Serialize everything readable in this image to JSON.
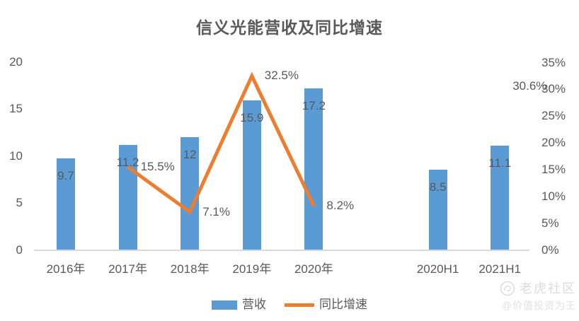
{
  "chart_data": {
    "type": "bar",
    "title": "信义光能营收及同比增速",
    "categories": [
      "2016年",
      "2017年",
      "2018年",
      "2019年",
      "2020年",
      "2020H1",
      "2021H1"
    ],
    "category_slots": [
      0,
      1,
      2,
      3,
      4,
      6,
      7
    ],
    "slot_count": 8,
    "gap_after": "2020年",
    "grid": false,
    "series": [
      {
        "name": "营收",
        "kind": "bar",
        "axis": "left",
        "color": "#5B9BD5",
        "values": [
          9.7,
          11.2,
          12,
          15.9,
          17.2,
          8.5,
          11.1
        ],
        "labels": [
          "9.7",
          "11.2",
          "12",
          "15.9",
          "17.2",
          "8.5",
          "11.1"
        ]
      },
      {
        "name": "同比增速",
        "kind": "line",
        "axis": "right",
        "color": "#ED7D31",
        "values": [
          null,
          15.5,
          7.1,
          32.5,
          8.2,
          null,
          30.6
        ],
        "labels": [
          null,
          "15.5%",
          "7.1%",
          "32.5%",
          "8.2%",
          null,
          "30.6%"
        ]
      }
    ],
    "left_axis": {
      "range": [
        0,
        20
      ],
      "ticks": [
        20,
        15,
        10,
        5,
        0
      ],
      "tick_labels": [
        "20",
        "15",
        "10",
        "5",
        "0"
      ]
    },
    "right_axis": {
      "range": [
        0,
        35
      ],
      "ticks": [
        35,
        30,
        25,
        20,
        15,
        10,
        5,
        0
      ],
      "tick_labels": [
        "35%",
        "30%",
        "25%",
        "20%",
        "15%",
        "10%",
        "5%",
        "0%"
      ]
    },
    "legend": {
      "position": "bottom",
      "items": [
        "营收",
        "同比增速"
      ]
    }
  },
  "watermark": {
    "brand": "老虎社区",
    "author": "@价值投资为王"
  },
  "colors": {
    "bar": "#5B9BD5",
    "line": "#ED7D31",
    "text": "#595959",
    "axis_line": "#D9D9D9",
    "watermark": "#DCDCDC"
  }
}
